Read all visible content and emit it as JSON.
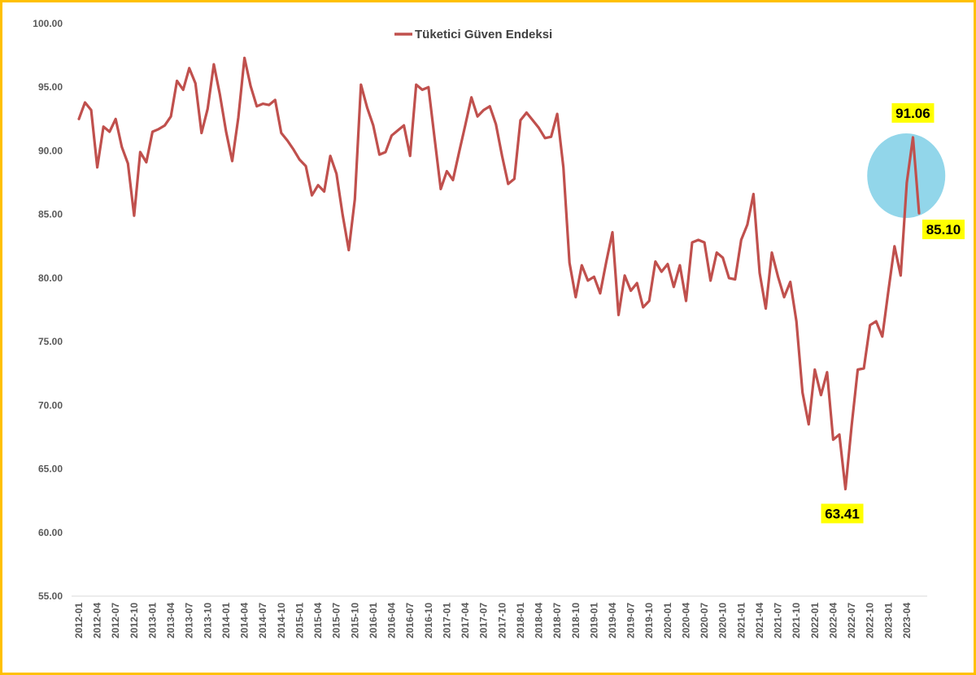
{
  "chart_data": {
    "type": "line",
    "title": "",
    "xlabel": "",
    "ylabel": "",
    "ylim": [
      55,
      100
    ],
    "yticks": [
      "55.00",
      "60.00",
      "65.00",
      "70.00",
      "75.00",
      "80.00",
      "85.00",
      "90.00",
      "95.00",
      "100.00"
    ],
    "grid": false,
    "legend_position": "top-center",
    "series": [
      {
        "name": "Tüketici Güven Endeksi",
        "color": "#c0504d",
        "x": [
          "2012-01",
          "2012-02",
          "2012-03",
          "2012-04",
          "2012-05",
          "2012-06",
          "2012-07",
          "2012-08",
          "2012-09",
          "2012-10",
          "2012-11",
          "2012-12",
          "2013-01",
          "2013-02",
          "2013-03",
          "2013-04",
          "2013-05",
          "2013-06",
          "2013-07",
          "2013-08",
          "2013-09",
          "2013-10",
          "2013-11",
          "2013-12",
          "2014-01",
          "2014-02",
          "2014-03",
          "2014-04",
          "2014-05",
          "2014-06",
          "2014-07",
          "2014-08",
          "2014-09",
          "2014-10",
          "2014-11",
          "2014-12",
          "2015-01",
          "2015-02",
          "2015-03",
          "2015-04",
          "2015-05",
          "2015-06",
          "2015-07",
          "2015-08",
          "2015-09",
          "2015-10",
          "2015-11",
          "2015-12",
          "2016-01",
          "2016-02",
          "2016-03",
          "2016-04",
          "2016-05",
          "2016-06",
          "2016-07",
          "2016-08",
          "2016-09",
          "2016-10",
          "2016-11",
          "2016-12",
          "2017-01",
          "2017-02",
          "2017-03",
          "2017-04",
          "2017-05",
          "2017-06",
          "2017-07",
          "2017-08",
          "2017-09",
          "2017-10",
          "2017-11",
          "2017-12",
          "2018-01",
          "2018-02",
          "2018-03",
          "2018-04",
          "2018-05",
          "2018-06",
          "2018-07",
          "2018-08",
          "2018-09",
          "2018-10",
          "2018-11",
          "2018-12",
          "2019-01",
          "2019-02",
          "2019-03",
          "2019-04",
          "2019-05",
          "2019-06",
          "2019-07",
          "2019-08",
          "2019-09",
          "2019-10",
          "2019-11",
          "2019-12",
          "2020-01",
          "2020-02",
          "2020-03",
          "2020-04",
          "2020-05",
          "2020-06",
          "2020-07",
          "2020-08",
          "2020-09",
          "2020-10",
          "2020-11",
          "2020-12",
          "2021-01",
          "2021-02",
          "2021-03",
          "2021-04",
          "2021-05",
          "2021-06",
          "2021-07",
          "2021-08",
          "2021-09",
          "2021-10",
          "2021-11",
          "2021-12",
          "2022-01",
          "2022-02",
          "2022-03",
          "2022-04",
          "2022-05",
          "2022-06",
          "2022-07",
          "2022-08",
          "2022-09",
          "2022-10",
          "2022-11",
          "2022-12",
          "2023-01",
          "2023-02",
          "2023-03",
          "2023-04",
          "2023-05",
          "2023-06"
        ],
        "values": [
          92.5,
          93.8,
          93.2,
          88.7,
          91.9,
          91.5,
          92.5,
          90.3,
          89.0,
          84.9,
          89.9,
          89.1,
          91.5,
          91.7,
          92.0,
          92.7,
          95.5,
          94.8,
          96.5,
          95.3,
          91.4,
          93.3,
          96.8,
          94.4,
          91.5,
          89.2,
          92.6,
          97.3,
          95.1,
          93.5,
          93.7,
          93.6,
          94.0,
          91.4,
          90.8,
          90.1,
          89.3,
          88.8,
          86.5,
          87.3,
          86.8,
          89.6,
          88.2,
          85.0,
          82.2,
          86.2,
          95.2,
          93.4,
          92.0,
          89.7,
          89.9,
          91.2,
          91.6,
          92.0,
          89.6,
          95.2,
          94.8,
          95.0,
          91.0,
          87.0,
          88.4,
          87.7,
          89.9,
          92.0,
          94.2,
          92.7,
          93.2,
          93.5,
          92.1,
          89.6,
          87.4,
          87.8,
          92.4,
          93.0,
          92.4,
          91.8,
          91.0,
          91.1,
          92.9,
          88.7,
          81.2,
          78.5,
          81.0,
          79.8,
          80.1,
          78.8,
          81.3,
          83.6,
          77.1,
          80.2,
          79.0,
          79.6,
          77.7,
          78.2,
          81.3,
          80.5,
          81.1,
          79.3,
          81.0,
          78.2,
          82.8,
          83.0,
          82.8,
          79.8,
          82.0,
          81.6,
          80.0,
          79.9,
          83.0,
          84.2,
          86.6,
          80.4,
          77.6,
          82.0,
          80.1,
          78.5,
          79.7,
          76.6,
          71.0,
          68.5,
          72.8,
          70.8,
          72.6,
          67.3,
          67.7,
          63.41,
          68.4,
          72.8,
          72.9,
          76.3,
          76.6,
          75.4,
          79.0,
          82.5,
          80.2,
          87.5,
          91.06,
          85.1
        ],
        "annotations": [
          {
            "label": "91.06",
            "x": "2023-05",
            "value": 91.06
          },
          {
            "label": "85.10",
            "x": "2023-06",
            "value": 85.1
          },
          {
            "label": "63.41",
            "x": "2022-06",
            "value": 63.41
          }
        ]
      }
    ],
    "xtick_labels": [
      "2012-01",
      "2012-04",
      "2012-07",
      "2012-10",
      "2013-01",
      "2013-04",
      "2013-07",
      "2013-10",
      "2014-01",
      "2014-04",
      "2014-07",
      "2014-10",
      "2015-01",
      "2015-04",
      "2015-07",
      "2015-10",
      "2016-01",
      "2016-04",
      "2016-07",
      "2016-10",
      "2017-01",
      "2017-04",
      "2017-07",
      "2017-10",
      "2018-01",
      "2018-04",
      "2018-07",
      "2018-10",
      "2019-01",
      "2019-04",
      "2019-07",
      "2019-10",
      "2020-01",
      "2020-04",
      "2020-07",
      "2020-10",
      "2021-01",
      "2021-04",
      "2021-07",
      "2021-10",
      "2022-01",
      "2022-04",
      "2022-07",
      "2022-10",
      "2023-01",
      "2023-04"
    ],
    "highlight": {
      "shape": "ellipse",
      "color": "#92d6ea",
      "around": [
        "2023-05",
        "2023-06"
      ]
    },
    "annotation_bg": "#ffff00"
  }
}
